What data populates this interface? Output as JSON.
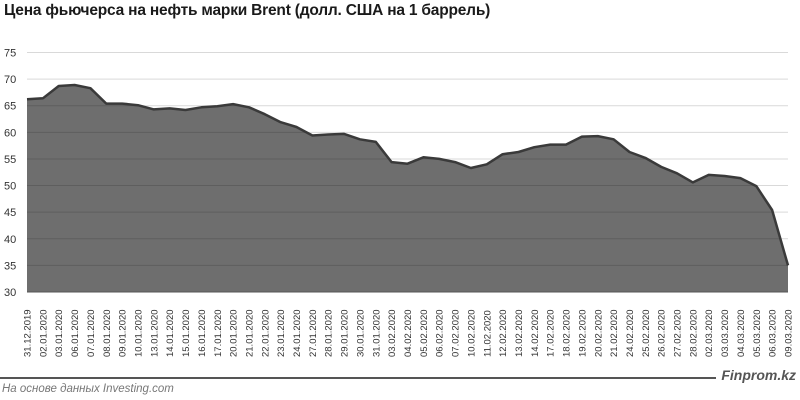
{
  "title": "Цена фьючерса на нефть марки Brent (долл. США на 1 баррель)",
  "footer": {
    "source": "На основе данных Investing.com",
    "brand": "Finprom.kz"
  },
  "colors": {
    "fill": "#6e6e6e",
    "line": "#3a3a3a",
    "grid": "#d9d9d9",
    "grid_inside": "#5e5e5e"
  },
  "chart_data": {
    "type": "area",
    "title": "Цена фьючерса на нефть марки Brent (долл. США на 1 баррель)",
    "xlabel": "",
    "ylabel": "",
    "ylim": [
      30,
      75
    ],
    "yticks": [
      30,
      35,
      40,
      45,
      50,
      55,
      60,
      65,
      70,
      75
    ],
    "grid": true,
    "legend": "none",
    "categories": [
      "31.12.2019",
      "02.01.2020",
      "03.01.2020",
      "06.01.2020",
      "07.01.2020",
      "08.01.2020",
      "09.01.2020",
      "10.01.2020",
      "13.01.2020",
      "14.01.2020",
      "15.01.2020",
      "16.01.2020",
      "17.01.2020",
      "20.01.2020",
      "21.01.2020",
      "22.01.2020",
      "23.01.2020",
      "24.01.2020",
      "27.01.2020",
      "28.01.2020",
      "29.01.2020",
      "30.01.2020",
      "31.01.2020",
      "03.02.2020",
      "04.02.2020",
      "05.02.2020",
      "06.02.2020",
      "07.02.2020",
      "10.02.2020",
      "11.02.2020",
      "12.02.2020",
      "13.02.2020",
      "14.02.2020",
      "17.02.2020",
      "18.02.2020",
      "19.02.2020",
      "20.02.2020",
      "21.02.2020",
      "24.02.2020",
      "25.02.2020",
      "26.02.2020",
      "27.02.2020",
      "28.02.2020",
      "02.03.2020",
      "03.03.2020",
      "04.03.2020",
      "05.03.2020",
      "06.03.2020",
      "09.03.2020"
    ],
    "series": [
      {
        "name": "Brent",
        "values": [
          66.2,
          66.4,
          68.7,
          68.9,
          68.3,
          65.4,
          65.4,
          65.1,
          64.3,
          64.5,
          64.2,
          64.7,
          64.9,
          65.3,
          64.7,
          63.4,
          61.9,
          61.0,
          59.4,
          59.6,
          59.7,
          58.7,
          58.2,
          54.4,
          54.1,
          55.3,
          55.0,
          54.4,
          53.3,
          54.0,
          55.9,
          56.3,
          57.2,
          57.7,
          57.7,
          59.2,
          59.3,
          58.7,
          56.3,
          55.2,
          53.5,
          52.3,
          50.6,
          52.0,
          51.8,
          51.4,
          49.9,
          45.4,
          35.0
        ]
      }
    ]
  }
}
